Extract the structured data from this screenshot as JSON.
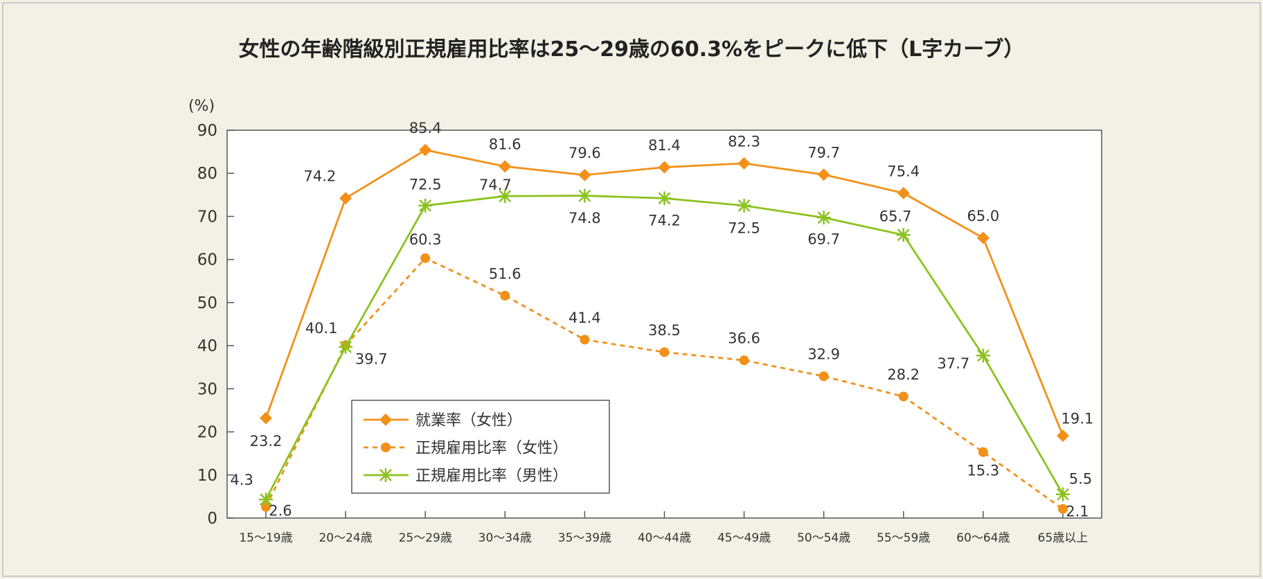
{
  "title": "女性の年齢階級別正規雇用比率は25〜29歳の60.3%をピークに低下（L字カーブ）",
  "chart_data": {
    "type": "line",
    "ylabel": "(%)",
    "ylim": [
      0,
      90
    ],
    "yticks": [
      0,
      10,
      20,
      30,
      40,
      50,
      60,
      70,
      80,
      90
    ],
    "categories": [
      "15〜19歳",
      "20〜24歳",
      "25〜29歳",
      "30〜34歳",
      "35〜39歳",
      "40〜44歳",
      "45〜49歳",
      "50〜54歳",
      "55〜59歳",
      "60〜64歳",
      "65歳以上"
    ],
    "legend_position": "bottom-left",
    "series": [
      {
        "name": "就業率（女性）",
        "color": "#f39019",
        "style": "solid",
        "marker": "diamond",
        "values": [
          23.2,
          74.2,
          85.4,
          81.6,
          79.6,
          81.4,
          82.3,
          79.7,
          75.4,
          65.0,
          19.1
        ],
        "labels": [
          "23.2",
          "74.2",
          "85.4",
          "81.6",
          "79.6",
          "81.4",
          "82.3",
          "79.7",
          "75.4",
          "65.0",
          "19.1"
        ]
      },
      {
        "name": "正規雇用比率（女性）",
        "color": "#f39019",
        "style": "dashed",
        "marker": "circle",
        "values": [
          2.6,
          40.1,
          60.3,
          51.6,
          41.4,
          38.5,
          36.6,
          32.9,
          28.2,
          15.3,
          2.1
        ],
        "labels": [
          "2.6",
          "40.1",
          "60.3",
          "51.6",
          "41.4",
          "38.5",
          "36.6",
          "32.9",
          "28.2",
          "15.3",
          "2.1"
        ]
      },
      {
        "name": "正規雇用比率（男性）",
        "color": "#8cc21f",
        "style": "solid",
        "marker": "asterisk",
        "values": [
          4.3,
          39.7,
          72.5,
          74.7,
          74.8,
          74.2,
          72.5,
          69.7,
          65.7,
          37.7,
          5.5
        ],
        "labels": [
          "4.3",
          "39.7",
          "72.5",
          "74.7",
          "74.8",
          "74.2",
          "72.5",
          "69.7",
          "65.7",
          "37.7",
          "5.5"
        ]
      }
    ]
  }
}
